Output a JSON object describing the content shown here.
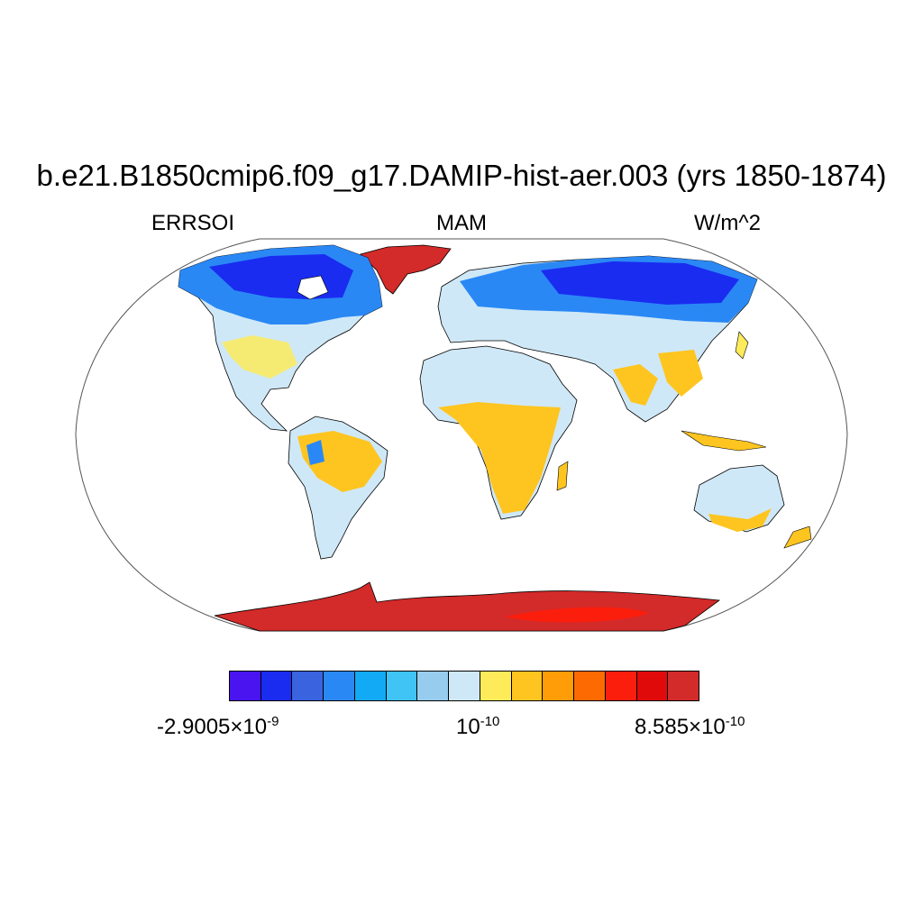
{
  "figure": {
    "title": "b.e21.B1850cmip6.f09_g17.DAMIP-hist-aer.003 (yrs 1850-1874)",
    "left_label": "ERRSOI",
    "center_label": "MAM",
    "right_label": "W/m^2"
  },
  "map": {
    "projection": "Robinson",
    "ocean_color": "#ffffff",
    "coastline_color": "#000000"
  },
  "colorbar": {
    "colors": [
      "#4a14f0",
      "#1a2cf0",
      "#3a63e0",
      "#2a88f5",
      "#12aaf5",
      "#40c4f5",
      "#98ccee",
      "#cfe8f7",
      "#fdeb5a",
      "#fec520",
      "#fe9d08",
      "#fd6a02",
      "#fc1e0c",
      "#e10a0a",
      "#d32a2a"
    ],
    "labels": [
      {
        "mantissa": "-2.9005×10",
        "exponent": "-9"
      },
      {
        "mantissa": "10",
        "exponent": "-10"
      },
      {
        "mantissa": "8.585×10",
        "exponent": "-10"
      }
    ]
  }
}
